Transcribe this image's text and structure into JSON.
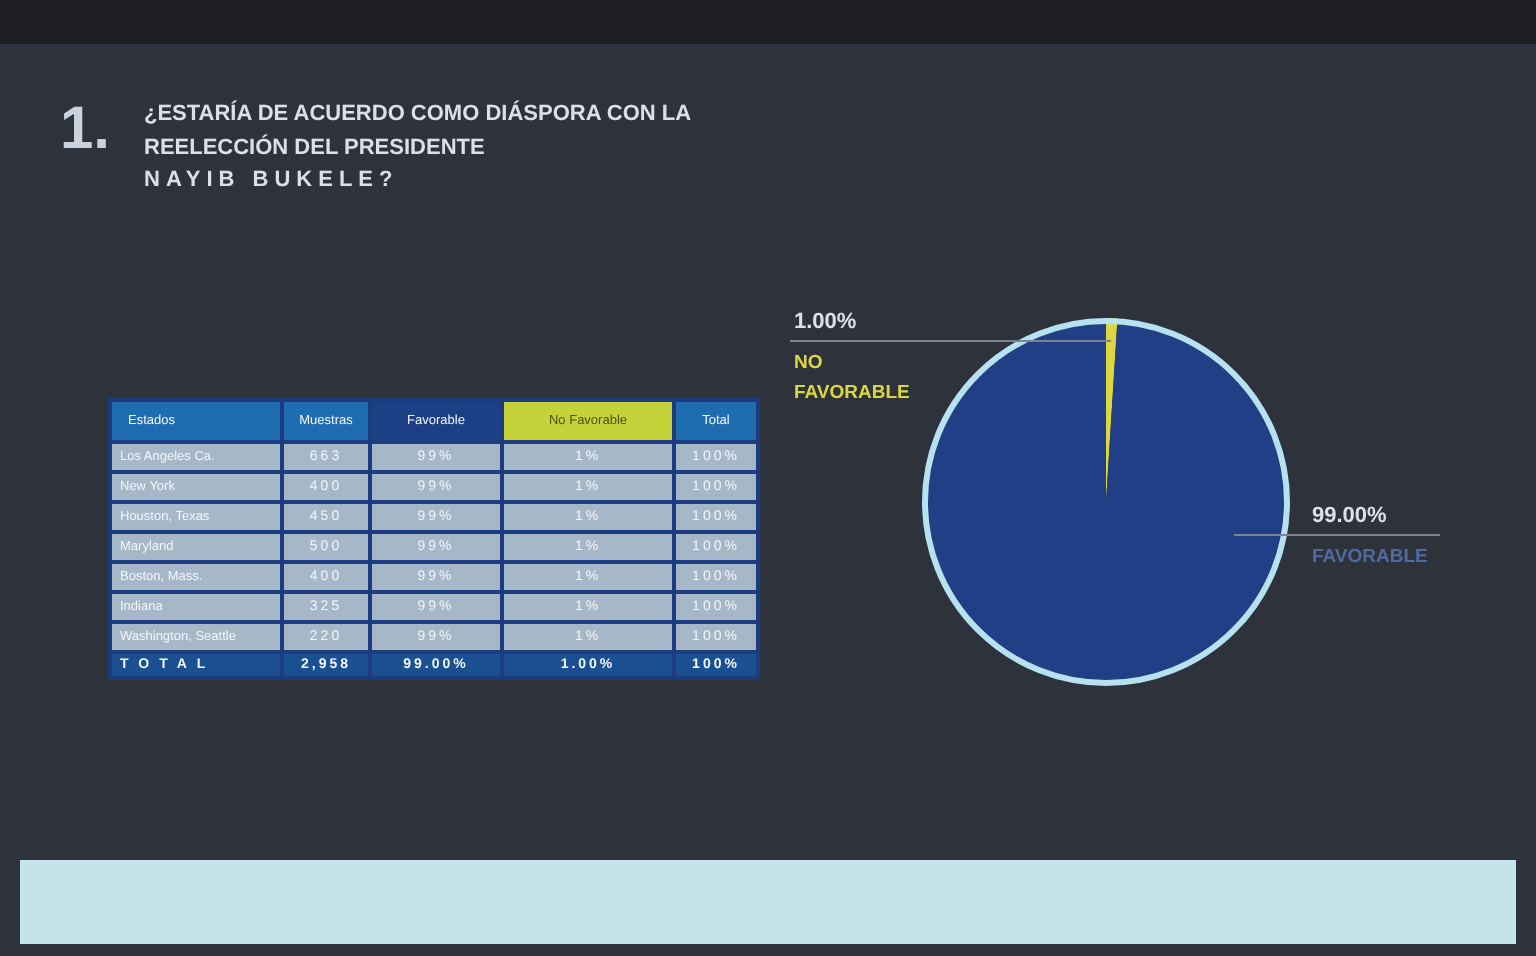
{
  "chart_data": {
    "type": "pie",
    "title": "¿ESTARÍA DE ACUERDO COMO DIÁSPORA CON LA\nREELECCIÓN DEL PRESIDENTE\nNAYIB BUKELE?",
    "categories": [
      "NO FAVORABLE",
      "FAVORABLE"
    ],
    "values": [
      1,
      99
    ],
    "colors": [
      "#ddd640",
      "#203f86"
    ],
    "value_labels": [
      "1.00%",
      "99.00%"
    ],
    "annotations": [
      "1.",
      "Estados",
      "Muestras",
      "Favorable",
      "No Favorable",
      "Total",
      "Los Angeles Ca.",
      "663",
      "99%",
      "1%",
      "100%",
      "New York",
      "400",
      "99%",
      "1%",
      "100%",
      "Houston, Texas",
      "450",
      "99%",
      "1%",
      "100%",
      "Maryland",
      "500",
      "99%",
      "1%",
      "100%",
      "Boston, Mass.",
      "400",
      "99%",
      "1%",
      "100%",
      "Indiana",
      "325",
      "99%",
      "1%",
      "100%",
      "Washington, Seattle",
      "220",
      "99%",
      "1%",
      "100%",
      "TOTAL",
      "2,958",
      "99.00%",
      "1.00%",
      "100%"
    ]
  }
}
